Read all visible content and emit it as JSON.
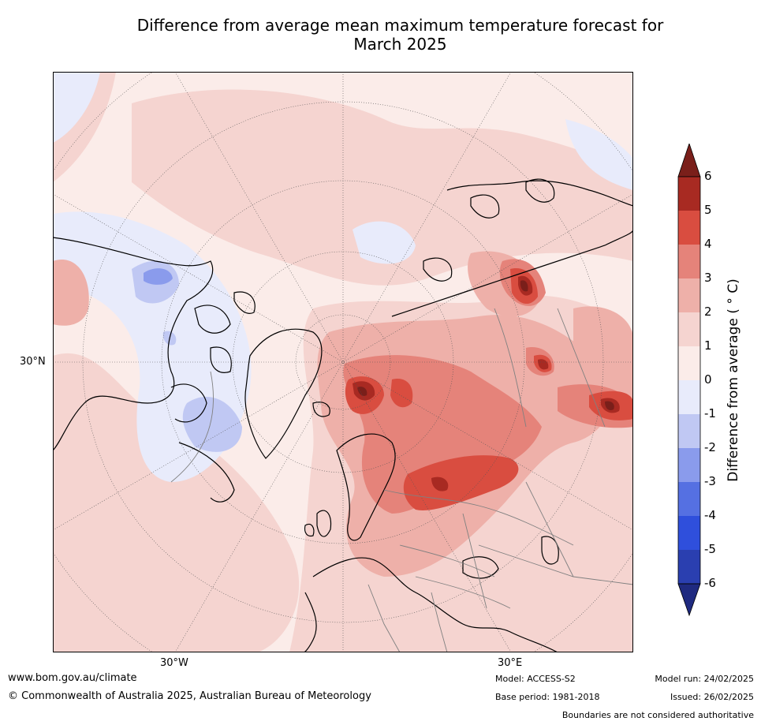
{
  "title": {
    "line1": "Difference from average mean maximum temperature forecast for",
    "line2": "March 2025"
  },
  "map": {
    "lat_label": "30°N",
    "lon_labels": [
      "30°W",
      "30°E"
    ],
    "land_outline_color": "#000000",
    "border_color": "#808080",
    "graticule_style": "dotted"
  },
  "colorbar": {
    "title": "Difference from average ( ° C)",
    "ticks": [
      "6",
      "5",
      "4",
      "3",
      "2",
      "1",
      "0",
      "-1",
      "-2",
      "-3",
      "-4",
      "-5",
      "-6"
    ],
    "colors": {
      "above_6": "#7a1f1a",
      "5_to_6": "#a82a22",
      "4_to_5": "#d94d40",
      "3_to_4": "#e5837a",
      "2_to_3": "#eeb0a9",
      "1_to_2": "#f5d4d0",
      "0_to_1": "#fbece9",
      "-1_to_0": "#e8ebfb",
      "-2_to_-1": "#c0c8f3",
      "-3_to_-2": "#8a9bec",
      "-4_to_-3": "#5570e2",
      "-5_to_-4": "#2f4fdc",
      "-6_to_-5": "#2a3fb0",
      "below_-6": "#1f2a80"
    }
  },
  "footer": {
    "website": "www.bom.gov.au/climate",
    "copyright": "© Commonwealth of Australia 2025, Australian Bureau of Meteorology",
    "model": "Model: ACCESS-S2",
    "base_period": "Base period: 1981-2018",
    "model_run": "Model run: 24/02/2025",
    "issued": "Issued: 26/02/2025",
    "boundaries_note": "Boundaries are not considered authoritative"
  }
}
